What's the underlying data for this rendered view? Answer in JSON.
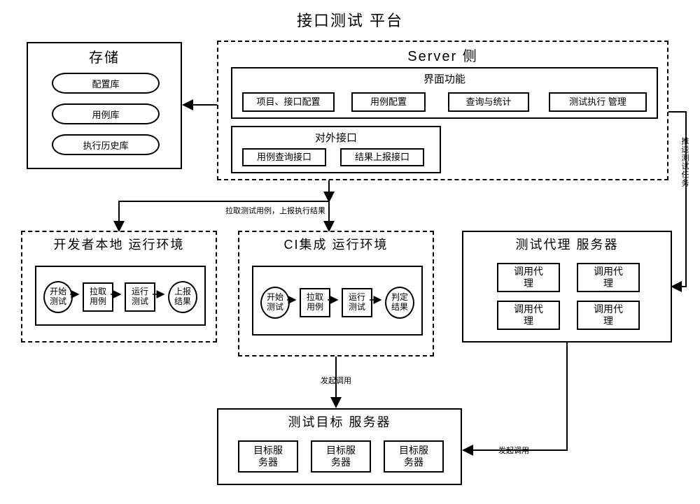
{
  "title": "接口测试  平台",
  "colors": {
    "line": "#000000",
    "bg": "#ffffff",
    "text": "#000000"
  },
  "storage": {
    "title": "存储",
    "items": [
      "配置库",
      "用例库",
      "执行历史库"
    ]
  },
  "server": {
    "title": "Server  侧",
    "ui": {
      "title": "界面功能",
      "items": [
        "项目、接口配置",
        "用例配置",
        "查询与统计",
        "测试执行 管理"
      ]
    },
    "ext": {
      "title": "对外接口",
      "items": [
        "用例查询接口",
        "结果上报接口"
      ]
    }
  },
  "dev": {
    "title": "开发者本地  运行环境",
    "flow": [
      "开始\n测试",
      "拉取\n用例",
      "运行\n测试",
      "上报\n结果"
    ]
  },
  "ci": {
    "title": "CI集成  运行环境",
    "flow": [
      "开始\n测试",
      "拉取\n用例",
      "运行\n测试",
      "判定\n结果"
    ]
  },
  "agent": {
    "title": "测试代理  服务器",
    "items": [
      "调用代\n理",
      "调用代\n理",
      "调用代\n理",
      "调用代\n理"
    ]
  },
  "target": {
    "title": "测试目标  服务器",
    "items": [
      "目标服\n务器",
      "目标服\n务器",
      "目标服\n务器"
    ]
  },
  "edges": {
    "push": "推送测试任务",
    "pull": "拉取测试用例，上报执行结果",
    "call1": "发起调用",
    "call2": "发起调用"
  }
}
